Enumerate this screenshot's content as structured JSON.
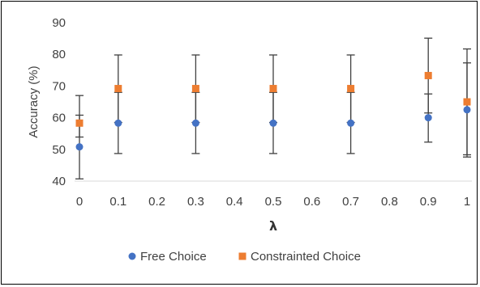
{
  "chart_data": {
    "type": "scatter",
    "xlabel": "λ",
    "ylabel": "Accuracy (%)",
    "xlim": [
      0,
      1
    ],
    "ylim": [
      40,
      90
    ],
    "x_ticks": [
      "0",
      "0.1",
      "0.2",
      "0.3",
      "0.4",
      "0.5",
      "0.6",
      "0.7",
      "0.8",
      "0.9",
      "1"
    ],
    "y_ticks": [
      "40",
      "50",
      "60",
      "70",
      "80",
      "90"
    ],
    "grid": false,
    "legend_position": "bottom",
    "series": [
      {
        "name": "Free Choice",
        "color": "#4472C4",
        "marker": "circle",
        "x": [
          0,
          0.1,
          0.3,
          0.5,
          0.7,
          0.9,
          1
        ],
        "y": [
          50.8,
          58.3,
          58.3,
          58.3,
          58.3,
          60.0,
          62.5
        ],
        "err_low": [
          40.7,
          48.7,
          48.7,
          48.7,
          48.7,
          52.3,
          47.6
        ],
        "err_high": [
          60.8,
          68.0,
          68.0,
          68.0,
          68.0,
          67.5,
          77.3
        ]
      },
      {
        "name": "Constrainted Choice",
        "color": "#ED7D31",
        "marker": "square",
        "x": [
          0,
          0.1,
          0.3,
          0.5,
          0.7,
          0.9,
          1
        ],
        "y": [
          58.3,
          69.2,
          69.2,
          69.2,
          69.2,
          73.3,
          65.0
        ],
        "err_low": [
          53.9,
          58.5,
          58.5,
          58.5,
          58.5,
          61.5,
          48.3
        ],
        "err_high": [
          67.0,
          79.8,
          79.8,
          79.8,
          79.8,
          85.1,
          81.7
        ]
      }
    ]
  }
}
